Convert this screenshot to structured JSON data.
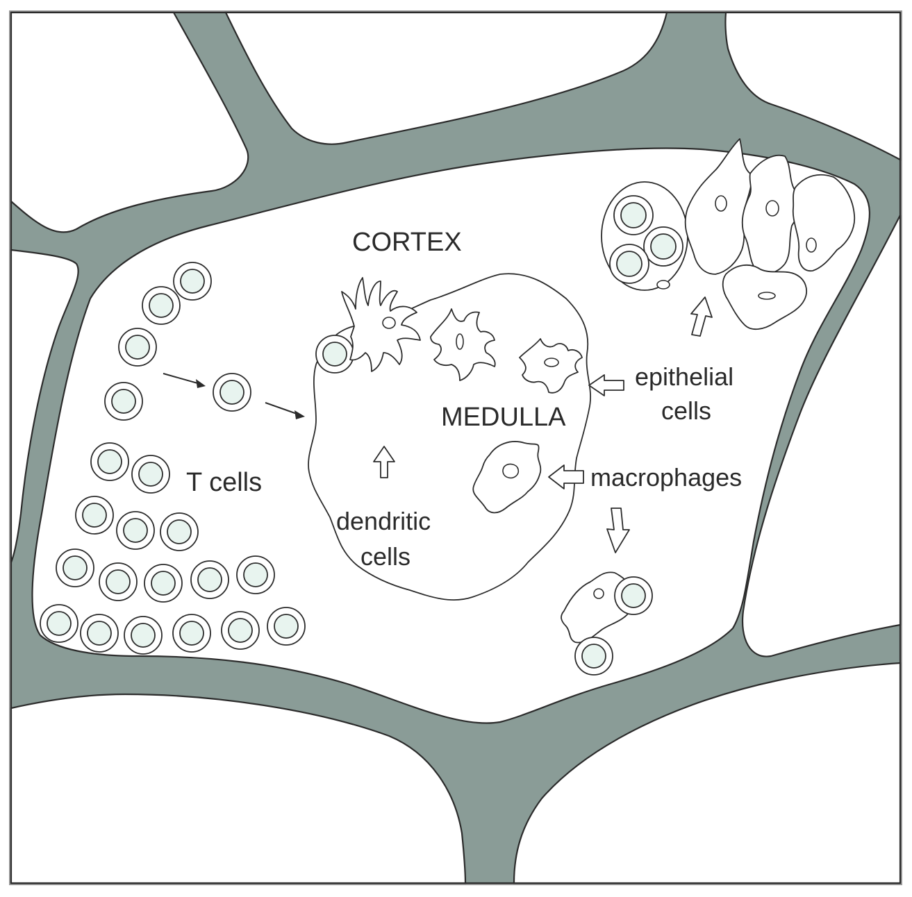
{
  "labels": {
    "cortex": "CORTEX",
    "medulla": "MEDULLA",
    "t_cells": "T cells",
    "dendritic_line1": "dendritic",
    "dendritic_line2": "cells",
    "epithelial_line1": "epithelial",
    "epithelial_line2": "cells",
    "macrophages": "macrophages"
  },
  "colors": {
    "septa": "#8a9c97",
    "cell_nucleus_fill": "#e8f4ef",
    "line": "#2b2b2b",
    "background": "#ffffff"
  }
}
